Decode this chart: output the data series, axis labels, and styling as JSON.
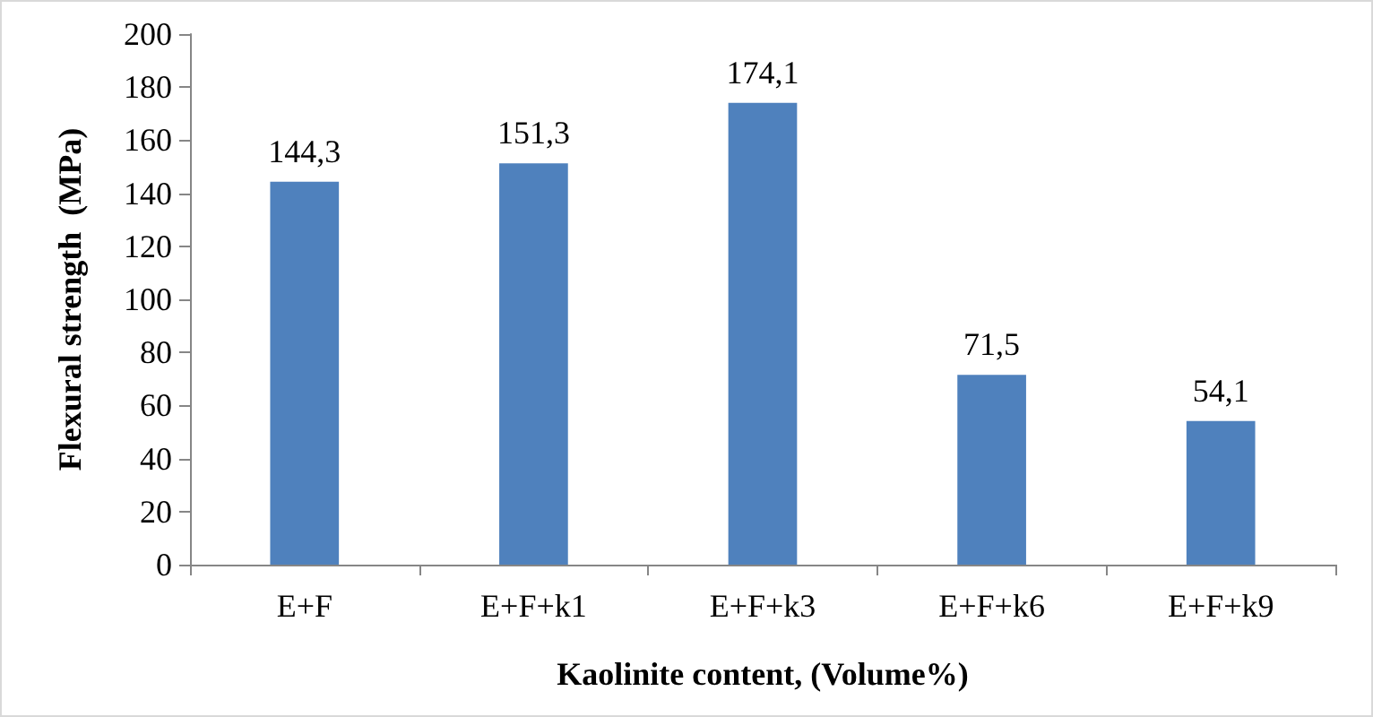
{
  "chart_data": {
    "type": "bar",
    "xlabel": "Kaolinite content, (Volume%)",
    "ylabel": "Flexural strength  (MPa)",
    "categories": [
      "E+F",
      "E+F+k1",
      "E+F+k3",
      "E+F+k6",
      "E+F+k9"
    ],
    "values": [
      144.3,
      151.3,
      174.1,
      71.5,
      54.1
    ],
    "value_labels": [
      "144,3",
      "151,3",
      "174,1",
      "71,5",
      "54,1"
    ],
    "color": "#4f81bd",
    "ylim": [
      0,
      200
    ],
    "yticks": [
      0,
      20,
      40,
      60,
      80,
      100,
      120,
      140,
      160,
      180,
      200
    ],
    "grid": false
  }
}
